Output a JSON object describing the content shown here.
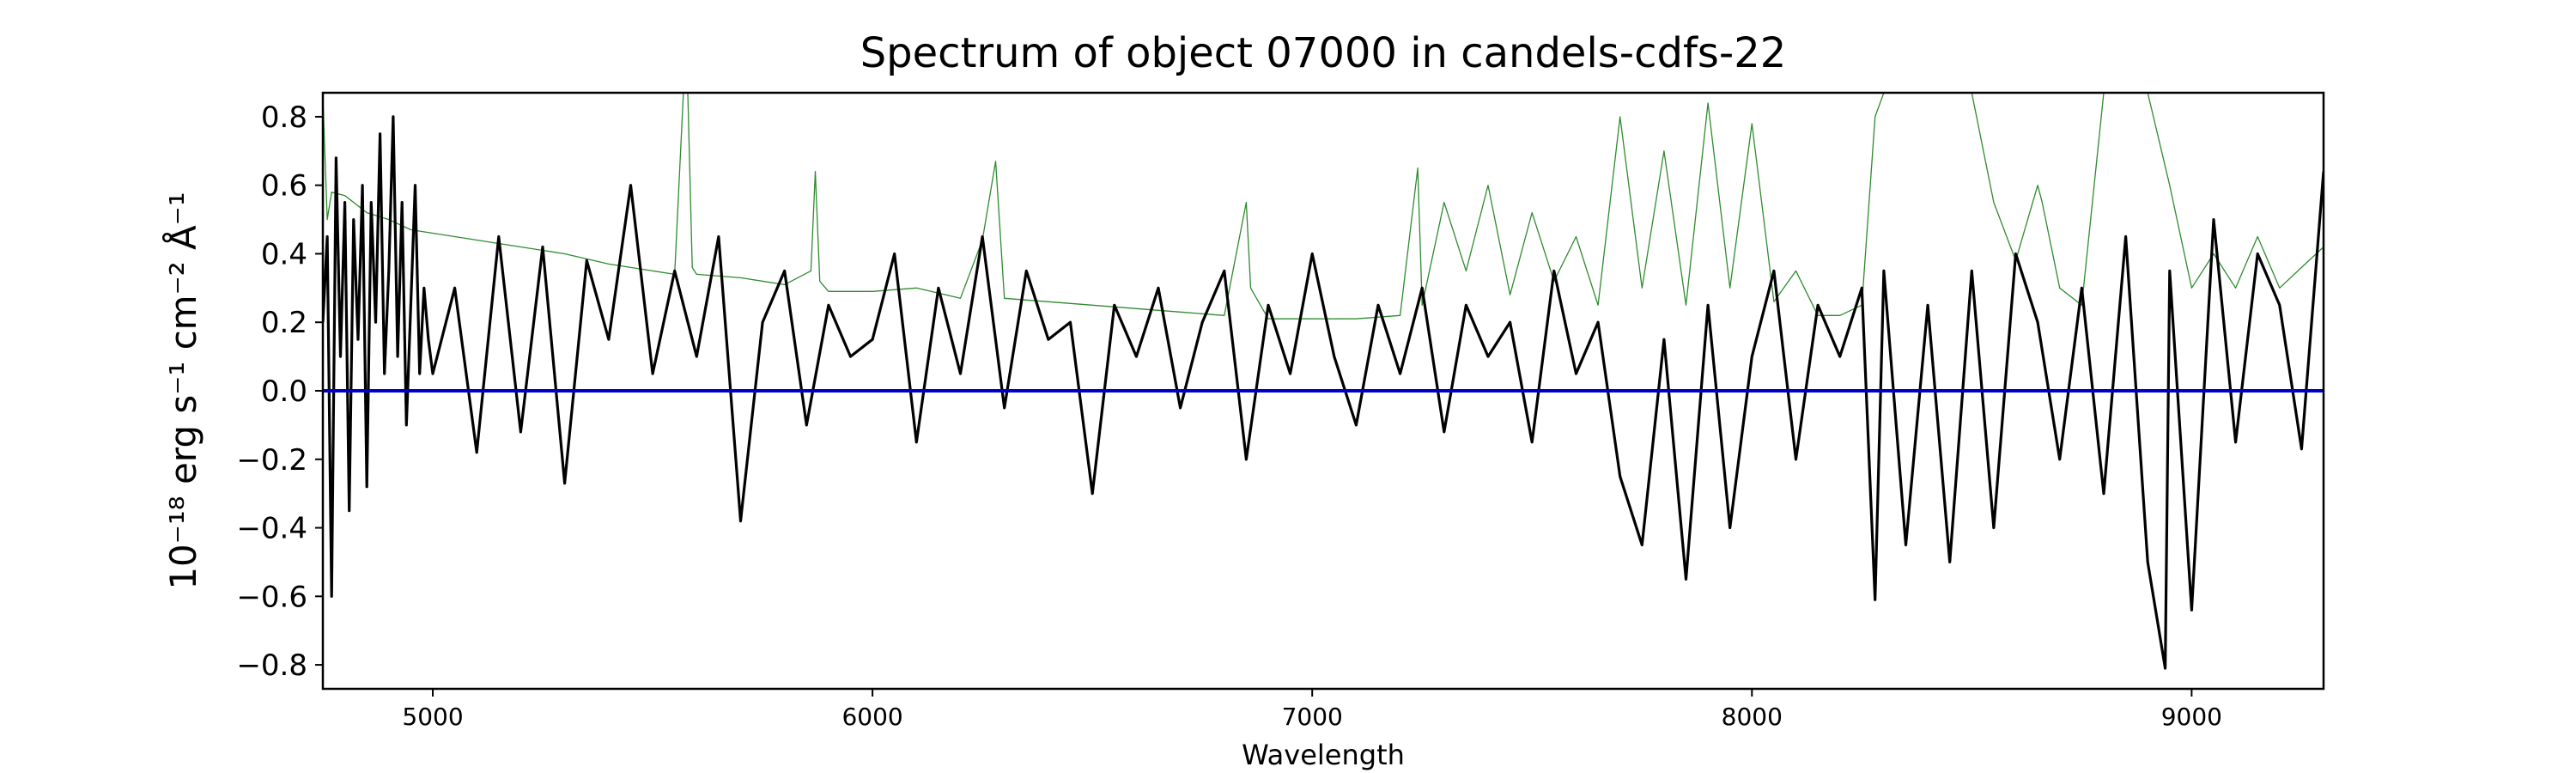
{
  "chart_data": {
    "type": "line",
    "title": "Spectrum of object 07000 in candels-cdfs-22",
    "xlabel": "Wavelength",
    "ylabel": "10⁻¹⁸ erg s⁻¹ cm⁻² Å⁻¹",
    "xlim": [
      4750,
      9300
    ],
    "ylim": [
      -0.87,
      0.87
    ],
    "x_ticks": [
      5000,
      6000,
      7000,
      8000,
      9000
    ],
    "y_ticks": [
      -0.8,
      -0.6,
      -0.4,
      -0.2,
      0.0,
      0.2,
      0.4,
      0.6,
      0.8
    ],
    "grid": false,
    "legend": "none",
    "colors": {
      "flux": "#000000",
      "error": "#2e8b2e",
      "zero": "#0000cc"
    },
    "series": [
      {
        "id": "flux",
        "x": [
          4750,
          4760,
          4770,
          4780,
          4790,
          4800,
          4810,
          4820,
          4830,
          4840,
          4850,
          4860,
          4870,
          4880,
          4890,
          4900,
          4910,
          4920,
          4930,
          4940,
          4950,
          4960,
          4970,
          4980,
          4990,
          5000,
          5050,
          5100,
          5150,
          5200,
          5250,
          5300,
          5350,
          5400,
          5450,
          5500,
          5550,
          5600,
          5650,
          5700,
          5750,
          5800,
          5850,
          5900,
          5950,
          6000,
          6050,
          6100,
          6150,
          6200,
          6250,
          6300,
          6350,
          6400,
          6450,
          6500,
          6550,
          6600,
          6650,
          6700,
          6750,
          6800,
          6850,
          6900,
          6950,
          7000,
          7050,
          7100,
          7150,
          7200,
          7250,
          7300,
          7350,
          7400,
          7450,
          7500,
          7550,
          7600,
          7650,
          7700,
          7750,
          7800,
          7850,
          7900,
          7950,
          8000,
          8050,
          8100,
          8150,
          8200,
          8250,
          8280,
          8300,
          8350,
          8400,
          8450,
          8500,
          8550,
          8600,
          8650,
          8700,
          8750,
          8800,
          8850,
          8900,
          8940,
          8950,
          9000,
          9050,
          9100,
          9150,
          9200,
          9250,
          9300
        ],
        "y": [
          0.2,
          0.45,
          -0.6,
          0.68,
          0.1,
          0.55,
          -0.35,
          0.5,
          0.15,
          0.6,
          -0.28,
          0.55,
          0.2,
          0.75,
          0.05,
          0.35,
          0.8,
          0.1,
          0.55,
          -0.1,
          0.25,
          0.6,
          0.05,
          0.3,
          0.15,
          0.05,
          0.3,
          -0.18,
          0.45,
          -0.12,
          0.42,
          -0.27,
          0.38,
          0.15,
          0.6,
          0.05,
          0.35,
          0.1,
          0.45,
          -0.38,
          0.2,
          0.35,
          -0.1,
          0.25,
          0.1,
          0.15,
          0.4,
          -0.15,
          0.3,
          0.05,
          0.45,
          -0.05,
          0.35,
          0.15,
          0.2,
          -0.3,
          0.25,
          0.1,
          0.3,
          -0.05,
          0.2,
          0.35,
          -0.2,
          0.25,
          0.05,
          0.4,
          0.1,
          -0.1,
          0.25,
          0.05,
          0.3,
          -0.12,
          0.25,
          0.1,
          0.2,
          -0.15,
          0.35,
          0.05,
          0.2,
          -0.25,
          -0.45,
          0.15,
          -0.55,
          0.25,
          -0.4,
          0.1,
          0.35,
          -0.2,
          0.25,
          0.1,
          0.3,
          -0.61,
          0.35,
          -0.45,
          0.25,
          -0.5,
          0.35,
          -0.4,
          0.4,
          0.2,
          -0.2,
          0.3,
          -0.3,
          0.45,
          -0.5,
          -0.81,
          0.35,
          -0.64,
          0.5,
          -0.15,
          0.4,
          0.25,
          -0.17,
          0.64
        ]
      },
      {
        "id": "error",
        "x": [
          4750,
          4760,
          4770,
          4800,
          4850,
          4900,
          4950,
          5000,
          5100,
          5200,
          5300,
          5400,
          5500,
          5550,
          5570,
          5580,
          5590,
          5600,
          5700,
          5800,
          5860,
          5870,
          5880,
          5900,
          6000,
          6100,
          6200,
          6250,
          6280,
          6300,
          6400,
          6500,
          6600,
          6700,
          6800,
          6850,
          6860,
          6900,
          7000,
          7100,
          7200,
          7240,
          7250,
          7300,
          7350,
          7400,
          7450,
          7500,
          7550,
          7600,
          7650,
          7700,
          7750,
          7800,
          7850,
          7900,
          7950,
          8000,
          8050,
          8100,
          8150,
          8200,
          8250,
          8280,
          8300,
          8350,
          8400,
          8450,
          8500,
          8550,
          8600,
          8650,
          8660,
          8700,
          8750,
          8800,
          8850,
          8900,
          8950,
          9000,
          9050,
          9100,
          9150,
          9200,
          9250,
          9300
        ],
        "y": [
          0.86,
          0.5,
          0.58,
          0.57,
          0.52,
          0.5,
          0.47,
          0.46,
          0.44,
          0.42,
          0.4,
          0.37,
          0.35,
          0.34,
          0.87,
          0.87,
          0.36,
          0.34,
          0.33,
          0.31,
          0.35,
          0.64,
          0.32,
          0.29,
          0.29,
          0.3,
          0.27,
          0.44,
          0.67,
          0.27,
          0.26,
          0.25,
          0.24,
          0.23,
          0.22,
          0.55,
          0.3,
          0.21,
          0.21,
          0.21,
          0.22,
          0.65,
          0.25,
          0.55,
          0.35,
          0.6,
          0.28,
          0.52,
          0.32,
          0.45,
          0.25,
          0.8,
          0.3,
          0.7,
          0.25,
          0.84,
          0.3,
          0.78,
          0.26,
          0.35,
          0.22,
          0.22,
          0.25,
          0.8,
          0.87,
          0.87,
          0.87,
          0.87,
          0.87,
          0.55,
          0.38,
          0.6,
          0.55,
          0.3,
          0.25,
          0.87,
          0.87,
          0.87,
          0.6,
          0.3,
          0.4,
          0.3,
          0.45,
          0.3,
          0.36,
          0.42
        ]
      },
      {
        "id": "zero",
        "x": [
          4750,
          9300
        ],
        "y": [
          0.0,
          0.0
        ]
      }
    ]
  }
}
